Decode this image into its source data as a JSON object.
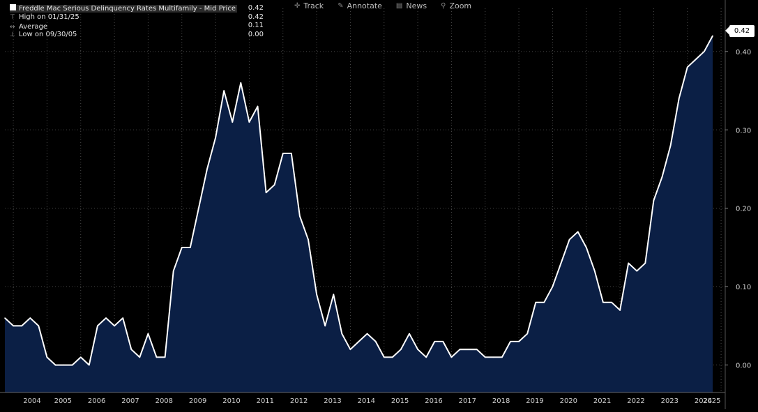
{
  "legend": {
    "title": "Freddle Mac Serious Delinquency Rates Multifamily - Mid Price",
    "last_value": "0.42",
    "high_label": "High on 01/31/25",
    "high_value": "0.42",
    "average_label": "Average",
    "average_value": "0.11",
    "low_label": "Low on 09/30/05",
    "low_value": "0.00"
  },
  "toolbar": {
    "track": "Track",
    "annotate": "Annotate",
    "news": "News",
    "zoom": "Zoom"
  },
  "last_price_badge": "0.42",
  "colors": {
    "background": "#000000",
    "line": "#ffffff",
    "area_fill": "#0b1f45",
    "grid": "#4a4a4a",
    "axis_text": "#d0d0d0"
  },
  "chart_data": {
    "type": "area",
    "title": "Freddle Mac Serious Delinquency Rates Multifamily - Mid Price",
    "x_tick_labels": [
      "2004",
      "2005",
      "2006",
      "2007",
      "2008",
      "2009",
      "2010",
      "2011",
      "2012",
      "2013",
      "2014",
      "2015",
      "2016",
      "2017",
      "2018",
      "2019",
      "2020",
      "2021",
      "2022",
      "2023",
      "2024",
      "2025"
    ],
    "y_tick_labels": [
      "0.00",
      "0.10",
      "0.20",
      "0.30",
      "0.40"
    ],
    "ylim": [
      -0.035,
      0.455
    ],
    "y_axis_side": "right",
    "grid": true,
    "legend_placement": "top-left",
    "series": [
      {
        "name": "Freddle Mac Serious Delinquency Rates Multifamily - Mid Price",
        "x_start": "2003-12-31",
        "frequency": "quarterly",
        "values": [
          0.06,
          0.05,
          0.05,
          0.06,
          0.05,
          0.01,
          0.0,
          0.0,
          0.0,
          0.01,
          0.0,
          0.05,
          0.06,
          0.05,
          0.06,
          0.02,
          0.01,
          0.04,
          0.01,
          0.01,
          0.12,
          0.15,
          0.15,
          0.2,
          0.25,
          0.29,
          0.35,
          0.31,
          0.36,
          0.31,
          0.33,
          0.22,
          0.23,
          0.27,
          0.27,
          0.19,
          0.16,
          0.09,
          0.05,
          0.09,
          0.04,
          0.02,
          0.03,
          0.04,
          0.03,
          0.01,
          0.01,
          0.02,
          0.04,
          0.02,
          0.01,
          0.03,
          0.03,
          0.01,
          0.02,
          0.02,
          0.02,
          0.01,
          0.01,
          0.01,
          0.03,
          0.03,
          0.04,
          0.08,
          0.08,
          0.1,
          0.13,
          0.16,
          0.17,
          0.15,
          0.12,
          0.08,
          0.08,
          0.07,
          0.13,
          0.12,
          0.13,
          0.21,
          0.24,
          0.28,
          0.34,
          0.38,
          0.39,
          0.4,
          0.42
        ]
      }
    ]
  }
}
